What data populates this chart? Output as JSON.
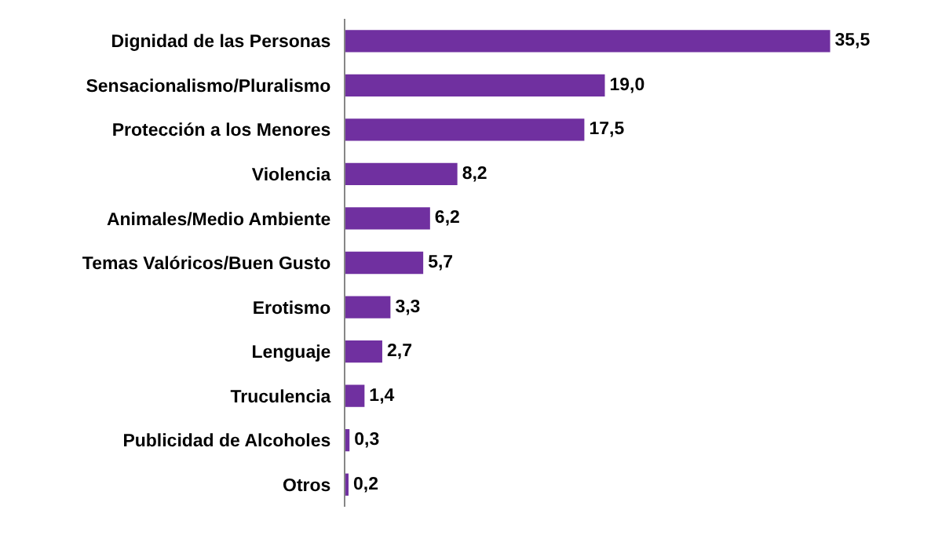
{
  "chart_data": {
    "type": "bar",
    "orientation": "horizontal",
    "categories": [
      "Dignidad de las Personas",
      "Sensacionalismo/Pluralismo",
      "Protección a los Menores",
      "Violencia",
      "Animales/Medio Ambiente",
      "Temas Valóricos/Buen Gusto",
      "Erotismo",
      "Lenguaje",
      "Truculencia",
      "Publicidad de Alcoholes",
      "Otros"
    ],
    "values": [
      35.5,
      19.0,
      17.5,
      8.2,
      6.2,
      5.7,
      3.3,
      2.7,
      1.4,
      0.3,
      0.2
    ],
    "value_labels": [
      "35,5",
      "19,0",
      "17,5",
      "8,2",
      "6,2",
      "5,7",
      "3,3",
      "2,7",
      "1,4",
      "0,3",
      "0,2"
    ],
    "color": "#7030a0"
  }
}
